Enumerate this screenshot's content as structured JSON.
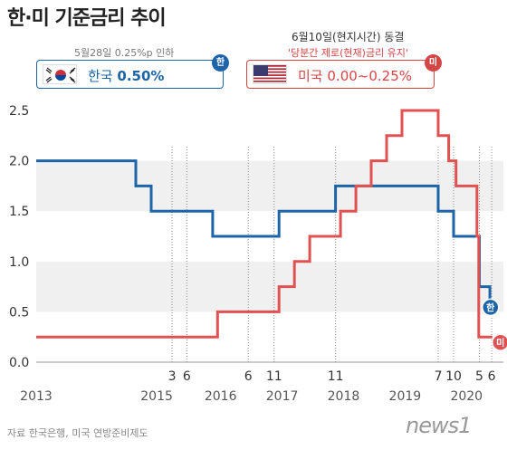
{
  "title": "한·미 기준금리 추이",
  "korea": {
    "note": "5월28일 0.25%p 인하",
    "label": "한국",
    "rate": "0.50%",
    "tag": "한"
  },
  "us": {
    "note1": "6월10일(현지시간) 동결",
    "note2": "'당분간 제로(현재)금리 유지'",
    "label": "미국",
    "rate": "0.00~0.25%",
    "tag": "미"
  },
  "source": "자료 한국은행, 미국 연방준비제도",
  "logo": "news1",
  "chart_data": {
    "type": "line",
    "title": "",
    "xlabel": "",
    "ylabel": "",
    "ylim": [
      0,
      2.5
    ],
    "yticks": [
      0.0,
      0.5,
      1.0,
      1.5,
      2.0,
      2.5
    ],
    "ytick_labels": [
      "0.0",
      "0.5",
      "1.0",
      "1.5",
      "2.0",
      "2.5"
    ],
    "x_range": [
      2013.0,
      2020.6
    ],
    "year_labels": [
      {
        "x": 2013.0,
        "label": "2013"
      },
      {
        "x": 2014.96,
        "label": "2015"
      },
      {
        "x": 2016.0,
        "label": "2016"
      },
      {
        "x": 2017.0,
        "label": "2017"
      },
      {
        "x": 2018.0,
        "label": "2018"
      },
      {
        "x": 2019.0,
        "label": "2019"
      },
      {
        "x": 2020.0,
        "label": "2020"
      }
    ],
    "month_labels": [
      {
        "x": 2015.21,
        "label": "3"
      },
      {
        "x": 2015.45,
        "label": "6"
      },
      {
        "x": 2016.45,
        "label": "6"
      },
      {
        "x": 2016.87,
        "label": "11"
      },
      {
        "x": 2017.87,
        "label": "11"
      },
      {
        "x": 2019.54,
        "label": "7"
      },
      {
        "x": 2019.79,
        "label": "10"
      },
      {
        "x": 2020.21,
        "label": "5"
      },
      {
        "x": 2020.41,
        "label": "6"
      }
    ],
    "grid": "horizontal bands",
    "series": [
      {
        "name": "한국",
        "color": "#1d64a8",
        "points": [
          [
            2013.0,
            2.0
          ],
          [
            2013.0,
            2.0
          ],
          [
            2014.62,
            2.0
          ],
          [
            2014.62,
            1.75
          ],
          [
            2014.87,
            1.75
          ],
          [
            2014.87,
            1.5
          ],
          [
            2015.87,
            1.5
          ],
          [
            2015.87,
            1.25
          ],
          [
            2016.95,
            1.25
          ],
          [
            2016.95,
            1.5
          ],
          [
            2017.87,
            1.5
          ],
          [
            2017.87,
            1.75
          ],
          [
            2019.54,
            1.75
          ],
          [
            2019.54,
            1.5
          ],
          [
            2019.79,
            1.5
          ],
          [
            2019.79,
            1.25
          ],
          [
            2020.21,
            1.25
          ],
          [
            2020.21,
            0.75
          ],
          [
            2020.38,
            0.75
          ],
          [
            2020.38,
            0.5
          ],
          [
            2020.42,
            0.5
          ]
        ]
      },
      {
        "name": "미국",
        "color": "#e05252",
        "points": [
          [
            2013.0,
            0.25
          ],
          [
            2015.95,
            0.25
          ],
          [
            2015.95,
            0.5
          ],
          [
            2016.95,
            0.5
          ],
          [
            2016.95,
            0.75
          ],
          [
            2017.2,
            0.75
          ],
          [
            2017.2,
            1.0
          ],
          [
            2017.45,
            1.0
          ],
          [
            2017.45,
            1.25
          ],
          [
            2017.95,
            1.25
          ],
          [
            2017.95,
            1.5
          ],
          [
            2018.2,
            1.5
          ],
          [
            2018.2,
            1.75
          ],
          [
            2018.45,
            1.75
          ],
          [
            2018.45,
            2.0
          ],
          [
            2018.7,
            2.0
          ],
          [
            2018.7,
            2.25
          ],
          [
            2018.95,
            2.25
          ],
          [
            2018.95,
            2.5
          ],
          [
            2019.54,
            2.5
          ],
          [
            2019.54,
            2.25
          ],
          [
            2019.71,
            2.25
          ],
          [
            2019.71,
            2.0
          ],
          [
            2019.83,
            2.0
          ],
          [
            2019.83,
            1.75
          ],
          [
            2020.17,
            1.75
          ],
          [
            2020.17,
            1.25
          ],
          [
            2020.2,
            1.25
          ],
          [
            2020.2,
            0.25
          ],
          [
            2020.42,
            0.25
          ]
        ]
      }
    ]
  }
}
